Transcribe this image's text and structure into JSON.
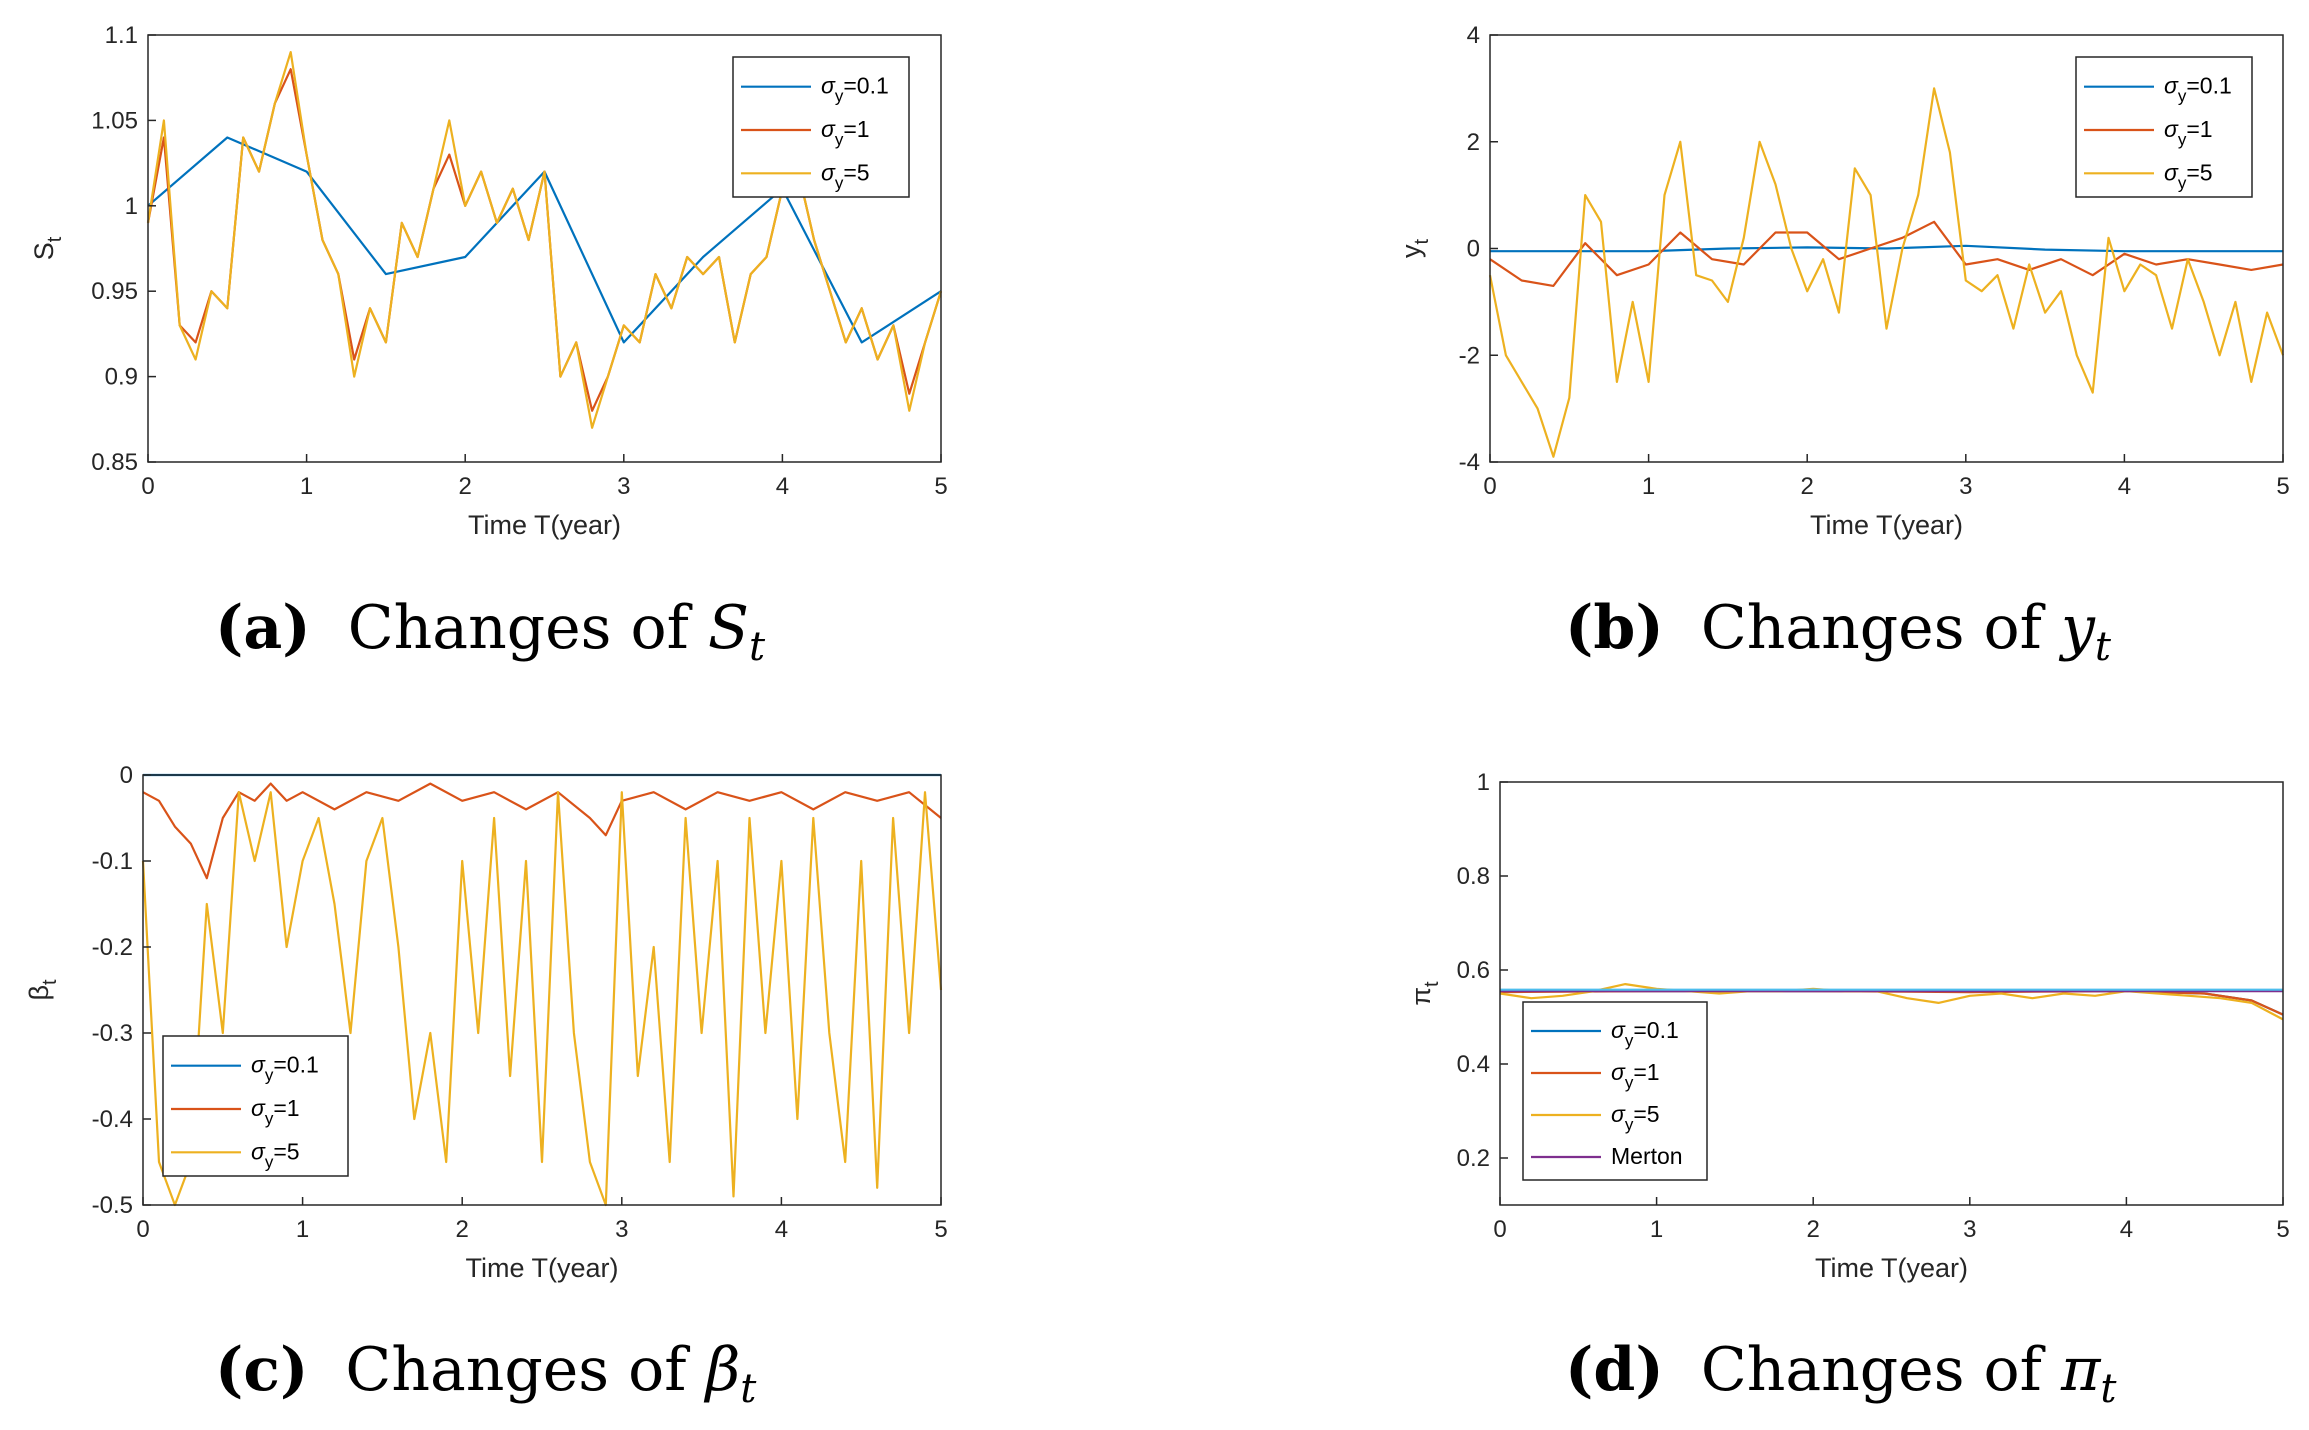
{
  "chart_data": [
    {
      "id": "a",
      "type": "line",
      "caption_letter": "a",
      "caption_text": "Changes of ",
      "caption_symbol": "S",
      "caption_sub": "t",
      "xlabel": "Time T(year)",
      "ylabel_main": "S",
      "ylabel_sub": "t",
      "xlim": [
        0,
        5
      ],
      "ylim": [
        0.85,
        1.1
      ],
      "xticks": [
        "0",
        "1",
        "2",
        "3",
        "4",
        "5"
      ],
      "yticks": [
        "0.85",
        "0.9",
        "0.95",
        "1",
        "1.05",
        "1.1"
      ],
      "legend_position": "top-right",
      "series": [
        {
          "name": "σy=0.1",
          "greek": "σ",
          "sub": "y",
          "val": "=0.1",
          "color": "#0072BD",
          "x": [
            0,
            0.5,
            1,
            1.5,
            2,
            2.5,
            3,
            3.5,
            4,
            4.5,
            5
          ],
          "values": [
            1.0,
            1.04,
            1.02,
            0.96,
            0.97,
            1.02,
            0.92,
            0.97,
            1.01,
            0.92,
            0.95
          ]
        },
        {
          "name": "σy=1",
          "greek": "σ",
          "sub": "y",
          "val": "=1",
          "color": "#D95319",
          "x": [
            0,
            0.1,
            0.2,
            0.3,
            0.4,
            0.5,
            0.6,
            0.7,
            0.8,
            0.9,
            1.0,
            1.1,
            1.2,
            1.3,
            1.4,
            1.5,
            1.6,
            1.7,
            1.8,
            1.9,
            2.0,
            2.1,
            2.2,
            2.3,
            2.4,
            2.5,
            2.6,
            2.7,
            2.8,
            2.9,
            3.0,
            3.1,
            3.2,
            3.3,
            3.4,
            3.5,
            3.6,
            3.7,
            3.8,
            3.9,
            4.0,
            4.1,
            4.2,
            4.3,
            4.4,
            4.5,
            4.6,
            4.7,
            4.8,
            4.9,
            5.0
          ],
          "values": [
            0.99,
            1.04,
            0.93,
            0.92,
            0.95,
            0.94,
            1.04,
            1.02,
            1.06,
            1.08,
            1.03,
            0.98,
            0.96,
            0.91,
            0.94,
            0.92,
            0.99,
            0.97,
            1.01,
            1.03,
            1.0,
            1.02,
            0.99,
            1.01,
            0.98,
            1.02,
            0.9,
            0.92,
            0.88,
            0.9,
            0.93,
            0.92,
            0.96,
            0.94,
            0.97,
            0.96,
            0.97,
            0.92,
            0.96,
            0.97,
            1.01,
            1.02,
            0.98,
            0.95,
            0.92,
            0.94,
            0.91,
            0.93,
            0.89,
            0.92,
            0.95
          ]
        },
        {
          "name": "σy=5",
          "greek": "σ",
          "sub": "y",
          "val": "=5",
          "color": "#EDB120",
          "x": [
            0,
            0.1,
            0.2,
            0.3,
            0.4,
            0.5,
            0.6,
            0.7,
            0.8,
            0.9,
            1.0,
            1.1,
            1.2,
            1.3,
            1.4,
            1.5,
            1.6,
            1.7,
            1.8,
            1.9,
            2.0,
            2.1,
            2.2,
            2.3,
            2.4,
            2.5,
            2.6,
            2.7,
            2.8,
            2.9,
            3.0,
            3.1,
            3.2,
            3.3,
            3.4,
            3.5,
            3.6,
            3.7,
            3.8,
            3.9,
            4.0,
            4.1,
            4.2,
            4.3,
            4.4,
            4.5,
            4.6,
            4.7,
            4.8,
            4.9,
            5.0
          ],
          "values": [
            0.99,
            1.05,
            0.93,
            0.91,
            0.95,
            0.94,
            1.04,
            1.02,
            1.06,
            1.09,
            1.03,
            0.98,
            0.96,
            0.9,
            0.94,
            0.92,
            0.99,
            0.97,
            1.01,
            1.05,
            1.0,
            1.02,
            0.99,
            1.01,
            0.98,
            1.02,
            0.9,
            0.92,
            0.87,
            0.9,
            0.93,
            0.92,
            0.96,
            0.94,
            0.97,
            0.96,
            0.97,
            0.92,
            0.96,
            0.97,
            1.01,
            1.02,
            0.98,
            0.95,
            0.92,
            0.94,
            0.91,
            0.93,
            0.88,
            0.92,
            0.95
          ]
        }
      ]
    },
    {
      "id": "b",
      "type": "line",
      "caption_letter": "b",
      "caption_text": "Changes of ",
      "caption_symbol": "y",
      "caption_sub": "t",
      "xlabel": "Time T(year)",
      "ylabel_main": "y",
      "ylabel_sub": "t",
      "xlim": [
        0,
        5
      ],
      "ylim": [
        -4,
        4
      ],
      "xticks": [
        "0",
        "1",
        "2",
        "3",
        "4",
        "5"
      ],
      "yticks": [
        "-4",
        "-2",
        "0",
        "2",
        "4"
      ],
      "legend_position": "top-right",
      "series": [
        {
          "name": "σy=0.1",
          "greek": "σ",
          "sub": "y",
          "val": "=0.1",
          "color": "#0072BD",
          "x": [
            0,
            0.5,
            1,
            1.5,
            2,
            2.5,
            3,
            3.5,
            4,
            4.5,
            5
          ],
          "values": [
            -0.05,
            -0.05,
            -0.05,
            0.0,
            0.02,
            0.0,
            0.05,
            -0.02,
            -0.05,
            -0.05,
            -0.05
          ]
        },
        {
          "name": "σy=1",
          "greek": "σ",
          "sub": "y",
          "val": "=1",
          "color": "#D95319",
          "x": [
            0,
            0.2,
            0.4,
            0.6,
            0.8,
            1.0,
            1.2,
            1.4,
            1.6,
            1.8,
            2.0,
            2.2,
            2.4,
            2.6,
            2.8,
            3.0,
            3.2,
            3.4,
            3.6,
            3.8,
            4.0,
            4.2,
            4.4,
            4.6,
            4.8,
            5.0
          ],
          "values": [
            -0.2,
            -0.6,
            -0.7,
            0.1,
            -0.5,
            -0.3,
            0.3,
            -0.2,
            -0.3,
            0.3,
            0.3,
            -0.2,
            0.0,
            0.2,
            0.5,
            -0.3,
            -0.2,
            -0.4,
            -0.2,
            -0.5,
            -0.1,
            -0.3,
            -0.2,
            -0.3,
            -0.4,
            -0.3
          ]
        },
        {
          "name": "σy=5",
          "greek": "σ",
          "sub": "y",
          "val": "=5",
          "color": "#EDB120",
          "x": [
            0,
            0.1,
            0.2,
            0.3,
            0.4,
            0.5,
            0.6,
            0.7,
            0.8,
            0.9,
            1.0,
            1.1,
            1.2,
            1.3,
            1.4,
            1.5,
            1.6,
            1.7,
            1.8,
            1.9,
            2.0,
            2.1,
            2.2,
            2.3,
            2.4,
            2.5,
            2.6,
            2.7,
            2.8,
            2.9,
            3.0,
            3.1,
            3.2,
            3.3,
            3.4,
            3.5,
            3.6,
            3.7,
            3.8,
            3.9,
            4.0,
            4.1,
            4.2,
            4.3,
            4.4,
            4.5,
            4.6,
            4.7,
            4.8,
            4.9,
            5.0
          ],
          "values": [
            -0.5,
            -2.0,
            -2.5,
            -3.0,
            -3.9,
            -2.8,
            1.0,
            0.5,
            -2.5,
            -1.0,
            -2.5,
            1.0,
            2.0,
            -0.5,
            -0.6,
            -1.0,
            0.2,
            2.0,
            1.2,
            0.0,
            -0.8,
            -0.2,
            -1.2,
            1.5,
            1.0,
            -1.5,
            0.0,
            1.0,
            3.0,
            1.8,
            -0.6,
            -0.8,
            -0.5,
            -1.5,
            -0.3,
            -1.2,
            -0.8,
            -2.0,
            -2.7,
            0.2,
            -0.8,
            -0.3,
            -0.5,
            -1.5,
            -0.2,
            -1.0,
            -2.0,
            -1.0,
            -2.5,
            -1.2,
            -2.0
          ]
        }
      ]
    },
    {
      "id": "c",
      "type": "line",
      "caption_letter": "c",
      "caption_text": "Changes of ",
      "caption_symbol": "β",
      "caption_sub": "t",
      "xlabel": "Time T(year)",
      "ylabel_main": "β",
      "ylabel_sub": "t",
      "xlim": [
        0,
        5
      ],
      "ylim": [
        -0.5,
        0
      ],
      "xticks": [
        "0",
        "1",
        "2",
        "3",
        "4",
        "5"
      ],
      "yticks": [
        "-0.5",
        "-0.4",
        "-0.3",
        "-0.2",
        "-0.1",
        "0"
      ],
      "legend_position": "bottom-left",
      "series": [
        {
          "name": "σy=0.1",
          "greek": "σ",
          "sub": "y",
          "val": "=0.1",
          "color": "#0072BD",
          "x": [
            0,
            1,
            2,
            3,
            4,
            5
          ],
          "values": [
            0.0,
            0.0,
            0.0,
            0.0,
            0.0,
            0.0
          ]
        },
        {
          "name": "σy=1",
          "greek": "σ",
          "sub": "y",
          "val": "=1",
          "color": "#D95319",
          "x": [
            0,
            0.1,
            0.2,
            0.3,
            0.4,
            0.5,
            0.6,
            0.7,
            0.8,
            0.9,
            1.0,
            1.2,
            1.4,
            1.6,
            1.8,
            2.0,
            2.2,
            2.4,
            2.6,
            2.8,
            2.9,
            3.0,
            3.2,
            3.4,
            3.6,
            3.8,
            4.0,
            4.2,
            4.4,
            4.6,
            4.8,
            5.0
          ],
          "values": [
            -0.02,
            -0.03,
            -0.06,
            -0.08,
            -0.12,
            -0.05,
            -0.02,
            -0.03,
            -0.01,
            -0.03,
            -0.02,
            -0.04,
            -0.02,
            -0.03,
            -0.01,
            -0.03,
            -0.02,
            -0.04,
            -0.02,
            -0.05,
            -0.07,
            -0.03,
            -0.02,
            -0.04,
            -0.02,
            -0.03,
            -0.02,
            -0.04,
            -0.02,
            -0.03,
            -0.02,
            -0.05
          ]
        },
        {
          "name": "σy=5",
          "greek": "σ",
          "sub": "y",
          "val": "=5",
          "color": "#EDB120",
          "x": [
            0,
            0.1,
            0.2,
            0.3,
            0.4,
            0.5,
            0.6,
            0.7,
            0.8,
            0.9,
            1.0,
            1.1,
            1.2,
            1.3,
            1.4,
            1.5,
            1.6,
            1.7,
            1.8,
            1.9,
            2.0,
            2.1,
            2.2,
            2.3,
            2.4,
            2.5,
            2.6,
            2.7,
            2.8,
            2.9,
            3.0,
            3.1,
            3.2,
            3.3,
            3.4,
            3.5,
            3.6,
            3.7,
            3.8,
            3.9,
            4.0,
            4.1,
            4.2,
            4.3,
            4.4,
            4.5,
            4.6,
            4.7,
            4.8,
            4.9,
            5.0
          ],
          "values": [
            -0.1,
            -0.45,
            -0.5,
            -0.45,
            -0.15,
            -0.3,
            -0.02,
            -0.1,
            -0.02,
            -0.2,
            -0.1,
            -0.05,
            -0.15,
            -0.3,
            -0.1,
            -0.05,
            -0.2,
            -0.4,
            -0.3,
            -0.45,
            -0.1,
            -0.3,
            -0.05,
            -0.35,
            -0.1,
            -0.45,
            -0.02,
            -0.3,
            -0.45,
            -0.5,
            -0.02,
            -0.35,
            -0.2,
            -0.45,
            -0.05,
            -0.3,
            -0.1,
            -0.49,
            -0.05,
            -0.3,
            -0.1,
            -0.4,
            -0.05,
            -0.3,
            -0.45,
            -0.1,
            -0.48,
            -0.05,
            -0.3,
            -0.02,
            -0.25
          ]
        }
      ]
    },
    {
      "id": "d",
      "type": "line",
      "caption_letter": "d",
      "caption_text": "Changes of ",
      "caption_symbol": "π",
      "caption_sub": "t",
      "xlabel": "Time T(year)",
      "ylabel_main": "π",
      "ylabel_sub": "t",
      "xlim": [
        0,
        5
      ],
      "ylim": [
        0.1,
        1
      ],
      "xticks": [
        "0",
        "1",
        "2",
        "3",
        "4",
        "5"
      ],
      "yticks": [
        "0.2",
        "0.4",
        "0.6",
        "0.8",
        "1"
      ],
      "legend_position": "bottom-left",
      "series": [
        {
          "name": "σy=0.1",
          "greek": "σ",
          "sub": "y",
          "val": "=0.1",
          "color": "#0072BD",
          "x": [
            0,
            1,
            2,
            3,
            4,
            4.5,
            4.8,
            5
          ],
          "values": [
            0.555,
            0.555,
            0.555,
            0.555,
            0.555,
            0.55,
            0.535,
            0.505
          ]
        },
        {
          "name": "σy=1",
          "greek": "σ",
          "sub": "y",
          "val": "=1",
          "color": "#D95319",
          "x": [
            0,
            1,
            2,
            3,
            4,
            4.5,
            4.8,
            5
          ],
          "values": [
            0.553,
            0.555,
            0.555,
            0.553,
            0.555,
            0.55,
            0.535,
            0.505
          ]
        },
        {
          "name": "σy=5",
          "greek": "σ",
          "sub": "y",
          "val": "=5",
          "color": "#EDB120",
          "x": [
            0,
            0.2,
            0.4,
            0.6,
            0.8,
            1.0,
            1.2,
            1.4,
            1.6,
            1.8,
            2.0,
            2.2,
            2.4,
            2.6,
            2.8,
            3.0,
            3.2,
            3.4,
            3.6,
            3.8,
            4.0,
            4.2,
            4.4,
            4.6,
            4.8,
            5.0
          ],
          "values": [
            0.55,
            0.54,
            0.545,
            0.555,
            0.57,
            0.56,
            0.555,
            0.55,
            0.555,
            0.555,
            0.56,
            0.555,
            0.555,
            0.54,
            0.53,
            0.545,
            0.55,
            0.54,
            0.55,
            0.545,
            0.555,
            0.55,
            0.545,
            0.54,
            0.53,
            0.495
          ]
        },
        {
          "name": "Merton",
          "greek": "",
          "sub": "",
          "val": "Merton",
          "color": "#7E2F8E",
          "x": [
            0,
            5
          ],
          "values": [
            0.555,
            0.555
          ]
        },
        {
          "name": "reference",
          "legend": false,
          "color": "#4DBEEE",
          "x": [
            0,
            5
          ],
          "values": [
            0.558,
            0.558
          ]
        }
      ]
    }
  ]
}
